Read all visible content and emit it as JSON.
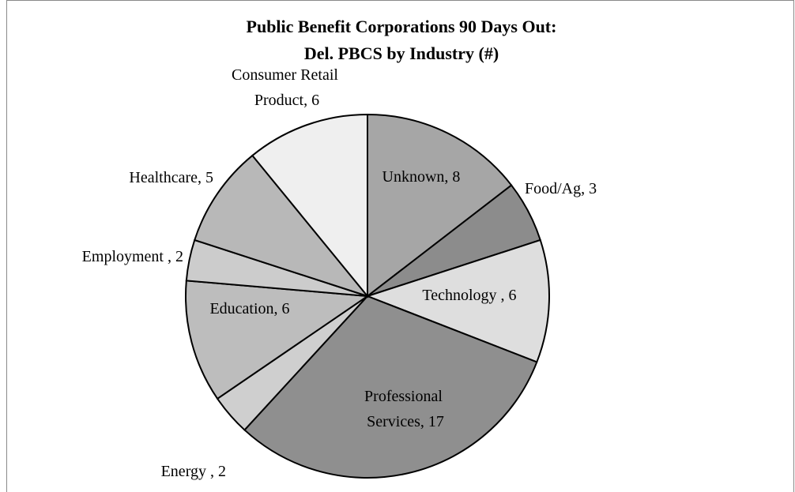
{
  "chart_data": {
    "type": "pie",
    "title": [
      "Public Benefit Corporations 90 Days Out:",
      "Del. PBCS by Industry (#)"
    ],
    "values": [
      8,
      3,
      6,
      17,
      2,
      6,
      2,
      5,
      6
    ],
    "value_labels": [
      "Unknown, 8",
      "Food/Ag, 3",
      "Technology , 6",
      "Professional Services, 17",
      "Energy , 2",
      "Education, 6",
      "Employment , 2",
      "Healthcare, 5",
      "Consumer Retail Product, 6"
    ],
    "colors": [
      "#a6a6a6",
      "#8c8c8c",
      "#dedede",
      "#8f8f8f",
      "#cfcfcf",
      "#bdbdbd",
      "#cccccc",
      "#b8b8b8",
      "#efefef"
    ],
    "start_angle": 0,
    "direction": "clockwise"
  }
}
